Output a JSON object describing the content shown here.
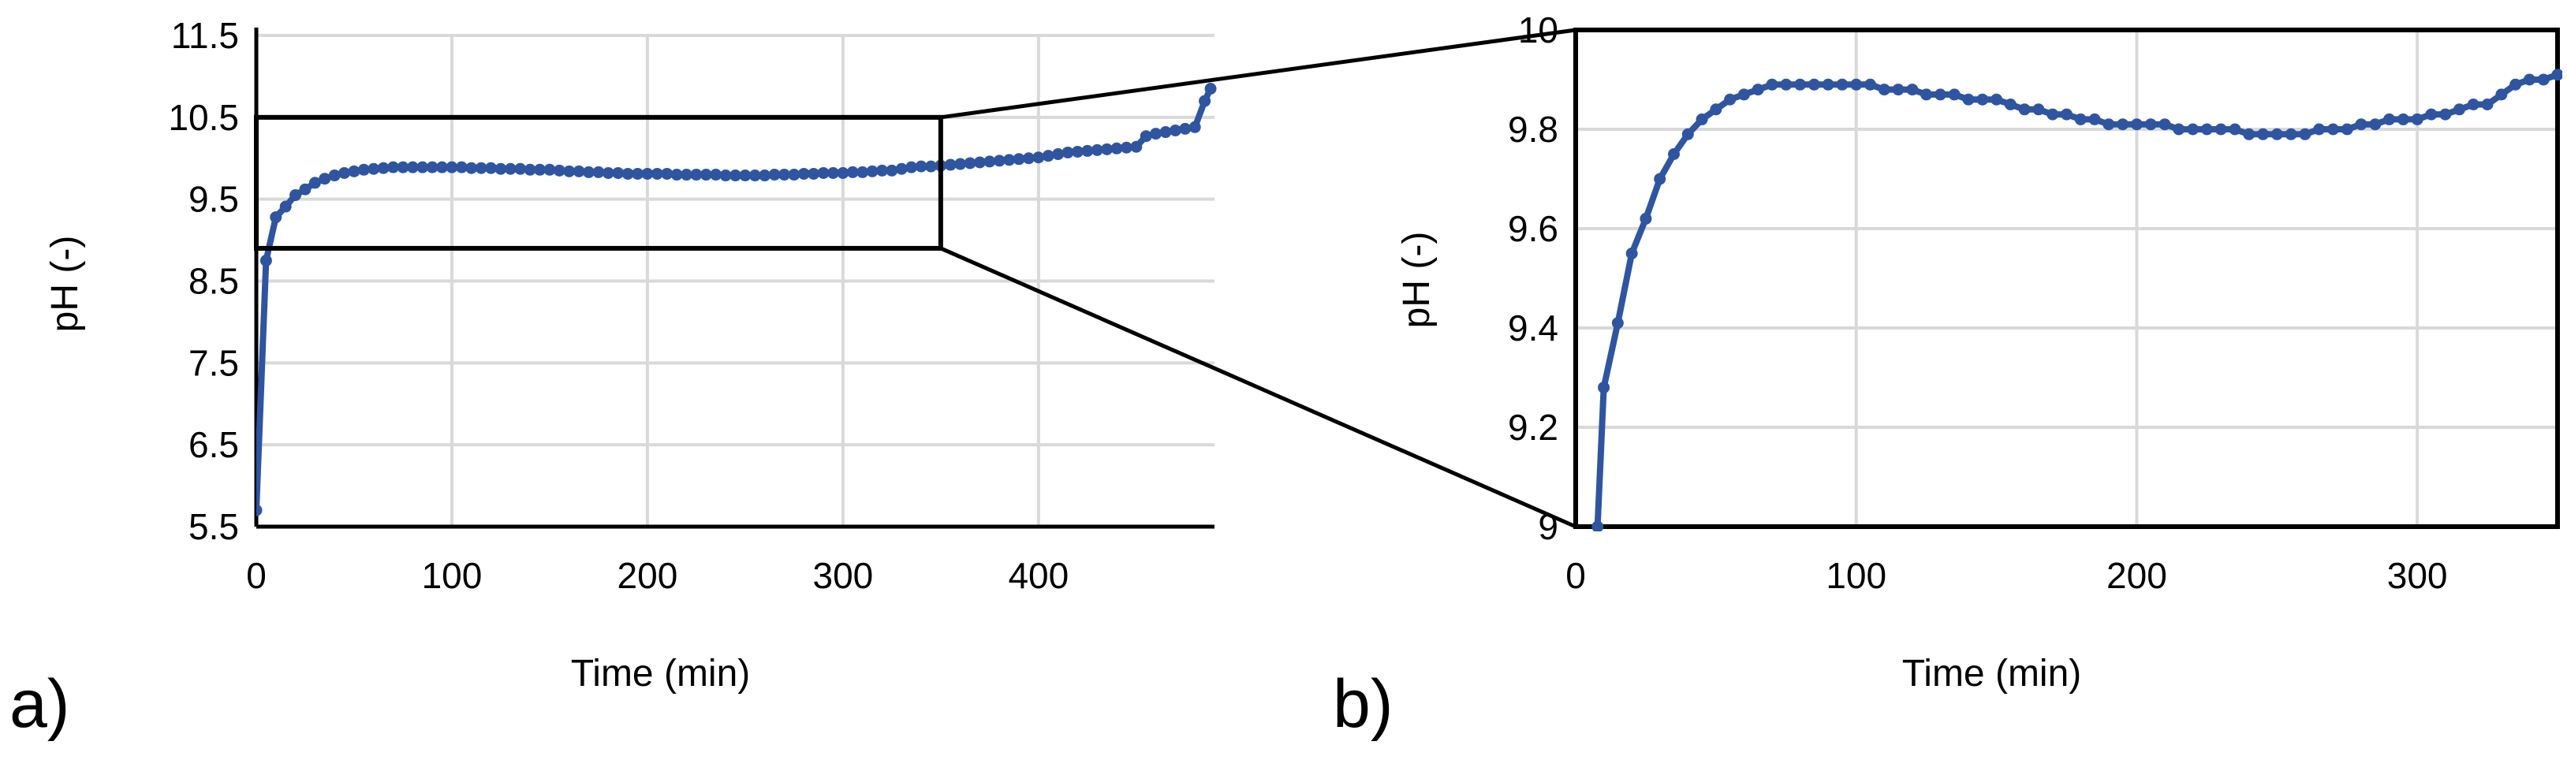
{
  "panel_a_label": "a)",
  "panel_b_label": "b)",
  "chart_data": [
    {
      "type": "scatter",
      "panel": "a)",
      "xlabel": "Time (min)",
      "ylabel": "pH (-)",
      "xlim": [
        0,
        490
      ],
      "ylim": [
        5.5,
        11.5
      ],
      "xticks": [
        0,
        100,
        200,
        300,
        400
      ],
      "yticks": [
        5.5,
        6.5,
        7.5,
        8.5,
        9.5,
        10.5,
        11.5
      ],
      "yticklabels": [
        "5.5",
        "6.5",
        "7.5",
        "8.5",
        "9.5",
        "10.5",
        "11.5"
      ],
      "grid": true,
      "line_color": "#2f55a0",
      "zoom_box": {
        "x": [
          0,
          350
        ],
        "y": [
          8.9,
          10.5
        ]
      },
      "series": [
        {
          "x": [
            0,
            5,
            10,
            15,
            20,
            25,
            30,
            35,
            40,
            45,
            50,
            55,
            60,
            65,
            70,
            75,
            80,
            85,
            90,
            95,
            100,
            105,
            110,
            115,
            120,
            125,
            130,
            135,
            140,
            145,
            150,
            155,
            160,
            165,
            170,
            175,
            180,
            185,
            190,
            195,
            200,
            205,
            210,
            215,
            220,
            225,
            230,
            235,
            240,
            245,
            250,
            255,
            260,
            265,
            270,
            275,
            280,
            285,
            290,
            295,
            300,
            305,
            310,
            315,
            320,
            325,
            330,
            335,
            340,
            345,
            350,
            355,
            360,
            365,
            370,
            375,
            380,
            385,
            390,
            395,
            400,
            405,
            410,
            415,
            420,
            425,
            430,
            435,
            440,
            445,
            450,
            455,
            460,
            465,
            470,
            475,
            480,
            485,
            488
          ],
          "y": [
            5.7,
            8.75,
            9.28,
            9.41,
            9.55,
            9.62,
            9.7,
            9.75,
            9.79,
            9.82,
            9.84,
            9.86,
            9.87,
            9.88,
            9.89,
            9.89,
            9.89,
            9.89,
            9.89,
            9.89,
            9.89,
            9.89,
            9.88,
            9.88,
            9.88,
            9.87,
            9.87,
            9.87,
            9.86,
            9.86,
            9.86,
            9.85,
            9.84,
            9.84,
            9.83,
            9.83,
            9.82,
            9.82,
            9.81,
            9.81,
            9.81,
            9.81,
            9.81,
            9.8,
            9.8,
            9.8,
            9.8,
            9.8,
            9.79,
            9.79,
            9.79,
            9.79,
            9.79,
            9.8,
            9.8,
            9.8,
            9.81,
            9.81,
            9.82,
            9.82,
            9.82,
            9.83,
            9.83,
            9.84,
            9.85,
            9.85,
            9.87,
            9.89,
            9.9,
            9.9,
            9.91,
            9.92,
            9.93,
            9.94,
            9.95,
            9.96,
            9.97,
            9.98,
            9.99,
            10.0,
            10.01,
            10.03,
            10.05,
            10.07,
            10.08,
            10.09,
            10.1,
            10.11,
            10.12,
            10.13,
            10.14,
            10.27,
            10.3,
            10.32,
            10.34,
            10.36,
            10.38,
            10.7,
            10.85
          ]
        }
      ]
    },
    {
      "type": "scatter",
      "panel": "b)",
      "xlabel": "Time (min)",
      "ylabel": "pH (-)",
      "xlim": [
        0,
        350
      ],
      "ylim": [
        9,
        10
      ],
      "xticks": [
        0,
        100,
        200,
        300
      ],
      "yticks": [
        9,
        9.2,
        9.4,
        9.6,
        9.8,
        10
      ],
      "yticklabels": [
        "9",
        "9.2",
        "9.4",
        "9.6",
        "9.8",
        "10"
      ],
      "grid": true,
      "line_color": "#2f55a0",
      "series": [
        {
          "x": [
            7.8,
            10,
            15,
            20,
            25,
            30,
            35,
            40,
            45,
            50,
            55,
            60,
            65,
            70,
            75,
            80,
            85,
            90,
            95,
            100,
            105,
            110,
            115,
            120,
            125,
            130,
            135,
            140,
            145,
            150,
            155,
            160,
            165,
            170,
            175,
            180,
            185,
            190,
            195,
            200,
            205,
            210,
            215,
            220,
            225,
            230,
            235,
            240,
            245,
            250,
            255,
            260,
            265,
            270,
            275,
            280,
            285,
            290,
            295,
            300,
            305,
            310,
            315,
            320,
            325,
            330,
            335,
            340,
            345,
            350
          ],
          "y": [
            9.0,
            9.28,
            9.41,
            9.55,
            9.62,
            9.7,
            9.75,
            9.79,
            9.82,
            9.84,
            9.86,
            9.87,
            9.88,
            9.89,
            9.89,
            9.89,
            9.89,
            9.89,
            9.89,
            9.89,
            9.89,
            9.88,
            9.88,
            9.88,
            9.87,
            9.87,
            9.87,
            9.86,
            9.86,
            9.86,
            9.85,
            9.84,
            9.84,
            9.83,
            9.83,
            9.82,
            9.82,
            9.81,
            9.81,
            9.81,
            9.81,
            9.81,
            9.8,
            9.8,
            9.8,
            9.8,
            9.8,
            9.79,
            9.79,
            9.79,
            9.79,
            9.79,
            9.8,
            9.8,
            9.8,
            9.81,
            9.81,
            9.82,
            9.82,
            9.82,
            9.83,
            9.83,
            9.84,
            9.85,
            9.85,
            9.87,
            9.89,
            9.9,
            9.9,
            9.91
          ]
        }
      ]
    }
  ]
}
